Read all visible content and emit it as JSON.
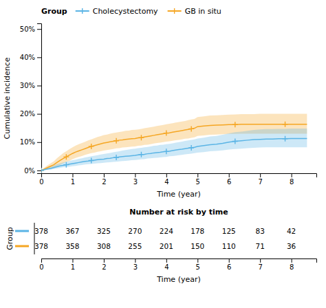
{
  "chart_data": [
    {
      "type": "line",
      "x_label": "Time (year)",
      "y_label": "Cumulative incidence",
      "legend_title": "Group",
      "legend": "upper left",
      "x": [
        0,
        0.1,
        0.2,
        0.3,
        0.4,
        0.5,
        0.6,
        0.7,
        0.8,
        0.9,
        1.0,
        1.1,
        1.2,
        1.3,
        1.4,
        1.5,
        1.6,
        1.7,
        1.8,
        1.9,
        2.0,
        2.1,
        2.2,
        2.3,
        2.4,
        2.5,
        2.6,
        2.7,
        2.8,
        2.9,
        3.0,
        3.1,
        3.2,
        3.3,
        3.4,
        3.5,
        3.6,
        3.7,
        3.8,
        3.9,
        4.0,
        4.1,
        4.2,
        4.3,
        4.4,
        4.5,
        4.6,
        4.7,
        4.8,
        4.9,
        5.0,
        5.2,
        5.4,
        5.6,
        5.8,
        6.0,
        6.2,
        6.4,
        6.6,
        6.8,
        7.0,
        7.2,
        7.4,
        7.6,
        7.8,
        8.0,
        8.2,
        8.5
      ],
      "series": [
        {
          "name": "Cholecystectomy",
          "color": "#5ab4e5",
          "marker": "plus",
          "values": [
            0.0,
            0.003,
            0.005,
            0.007,
            0.01,
            0.013,
            0.016,
            0.018,
            0.02,
            0.022,
            0.024,
            0.026,
            0.028,
            0.03,
            0.032,
            0.033,
            0.035,
            0.036,
            0.038,
            0.039,
            0.04,
            0.042,
            0.043,
            0.045,
            0.046,
            0.048,
            0.049,
            0.05,
            0.051,
            0.052,
            0.053,
            0.055,
            0.056,
            0.057,
            0.059,
            0.06,
            0.062,
            0.063,
            0.064,
            0.066,
            0.067,
            0.068,
            0.07,
            0.072,
            0.074,
            0.075,
            0.077,
            0.079,
            0.08,
            0.082,
            0.085,
            0.088,
            0.091,
            0.093,
            0.096,
            0.1,
            0.103,
            0.105,
            0.107,
            0.109,
            0.11,
            0.111,
            0.111,
            0.112,
            0.112,
            0.113,
            0.113,
            0.113
          ],
          "lower": [
            0.0,
            0.001,
            0.002,
            0.003,
            0.005,
            0.007,
            0.009,
            0.011,
            0.012,
            0.013,
            0.015,
            0.016,
            0.018,
            0.019,
            0.021,
            0.022,
            0.023,
            0.024,
            0.025,
            0.026,
            0.027,
            0.028,
            0.029,
            0.03,
            0.031,
            0.032,
            0.033,
            0.034,
            0.035,
            0.036,
            0.037,
            0.038,
            0.039,
            0.04,
            0.042,
            0.043,
            0.044,
            0.045,
            0.046,
            0.047,
            0.048,
            0.05,
            0.051,
            0.052,
            0.054,
            0.055,
            0.057,
            0.058,
            0.059,
            0.061,
            0.063,
            0.065,
            0.068,
            0.069,
            0.071,
            0.074,
            0.076,
            0.077,
            0.079,
            0.08,
            0.081,
            0.082,
            0.082,
            0.082,
            0.082,
            0.082,
            0.082,
            0.082
          ],
          "upper": [
            0.0,
            0.006,
            0.01,
            0.013,
            0.018,
            0.022,
            0.025,
            0.028,
            0.031,
            0.033,
            0.036,
            0.038,
            0.041,
            0.043,
            0.046,
            0.048,
            0.05,
            0.052,
            0.054,
            0.056,
            0.058,
            0.06,
            0.062,
            0.064,
            0.066,
            0.068,
            0.07,
            0.072,
            0.074,
            0.076,
            0.077,
            0.079,
            0.08,
            0.082,
            0.083,
            0.085,
            0.087,
            0.088,
            0.09,
            0.091,
            0.093,
            0.094,
            0.096,
            0.098,
            0.1,
            0.102,
            0.104,
            0.106,
            0.108,
            0.11,
            0.113,
            0.116,
            0.12,
            0.122,
            0.126,
            0.131,
            0.135,
            0.137,
            0.14,
            0.143,
            0.145,
            0.146,
            0.146,
            0.147,
            0.147,
            0.148,
            0.148,
            0.148
          ]
        },
        {
          "name": "GB in situ",
          "color": "#f5a623",
          "marker": "plus",
          "values": [
            0.0,
            0.005,
            0.01,
            0.015,
            0.02,
            0.028,
            0.035,
            0.042,
            0.048,
            0.054,
            0.06,
            0.065,
            0.069,
            0.073,
            0.077,
            0.081,
            0.085,
            0.088,
            0.091,
            0.094,
            0.097,
            0.099,
            0.101,
            0.103,
            0.105,
            0.107,
            0.108,
            0.11,
            0.111,
            0.112,
            0.113,
            0.115,
            0.116,
            0.118,
            0.12,
            0.122,
            0.124,
            0.126,
            0.128,
            0.13,
            0.132,
            0.133,
            0.135,
            0.137,
            0.139,
            0.141,
            0.143,
            0.145,
            0.147,
            0.149,
            0.155,
            0.157,
            0.159,
            0.16,
            0.161,
            0.162,
            0.162,
            0.163,
            0.163,
            0.163,
            0.163,
            0.163,
            0.163,
            0.163,
            0.163,
            0.163,
            0.163,
            0.163
          ],
          "lower": [
            0.0,
            0.002,
            0.004,
            0.007,
            0.01,
            0.015,
            0.02,
            0.025,
            0.03,
            0.034,
            0.04,
            0.044,
            0.048,
            0.051,
            0.055,
            0.058,
            0.061,
            0.063,
            0.066,
            0.068,
            0.07,
            0.072,
            0.074,
            0.076,
            0.078,
            0.079,
            0.081,
            0.082,
            0.083,
            0.084,
            0.085,
            0.087,
            0.088,
            0.09,
            0.091,
            0.093,
            0.095,
            0.097,
            0.098,
            0.1,
            0.102,
            0.103,
            0.105,
            0.107,
            0.108,
            0.11,
            0.112,
            0.113,
            0.115,
            0.117,
            0.122,
            0.124,
            0.126,
            0.127,
            0.128,
            0.129,
            0.129,
            0.13,
            0.13,
            0.13,
            0.13,
            0.13,
            0.13,
            0.13,
            0.13,
            0.13,
            0.13,
            0.13
          ],
          "upper": [
            0.0,
            0.01,
            0.018,
            0.025,
            0.032,
            0.043,
            0.052,
            0.061,
            0.068,
            0.075,
            0.082,
            0.088,
            0.093,
            0.097,
            0.101,
            0.106,
            0.11,
            0.114,
            0.118,
            0.121,
            0.125,
            0.127,
            0.13,
            0.132,
            0.134,
            0.136,
            0.138,
            0.14,
            0.141,
            0.143,
            0.144,
            0.145,
            0.147,
            0.149,
            0.151,
            0.153,
            0.155,
            0.157,
            0.159,
            0.161,
            0.163,
            0.165,
            0.167,
            0.169,
            0.171,
            0.173,
            0.175,
            0.178,
            0.18,
            0.182,
            0.189,
            0.191,
            0.194,
            0.195,
            0.196,
            0.197,
            0.198,
            0.199,
            0.199,
            0.199,
            0.2,
            0.2,
            0.2,
            0.2,
            0.2,
            0.2,
            0.2,
            0.2
          ]
        }
      ],
      "xlim": [
        0,
        8.8
      ],
      "xticks": [
        0,
        1,
        2,
        3,
        4,
        5,
        6,
        7,
        8
      ],
      "ylim": [
        -0.01,
        0.52
      ],
      "yticks": [
        {
          "value": 0.0,
          "label": "0%"
        },
        {
          "value": 0.1,
          "label": "10%"
        },
        {
          "value": 0.2,
          "label": "20%"
        },
        {
          "value": 0.3,
          "label": "30%"
        },
        {
          "value": 0.4,
          "label": "40%"
        },
        {
          "value": 0.5,
          "label": "50%"
        }
      ]
    },
    {
      "type": "table",
      "title": "Number at risk by time",
      "x_label": "Time (year)",
      "y_label": "Group",
      "x": [
        0,
        1,
        2,
        3,
        4,
        5,
        6,
        7,
        8
      ],
      "series": [
        {
          "color": "#5ab4e5",
          "values": [
            378,
            367,
            325,
            270,
            224,
            178,
            125,
            83,
            42
          ]
        },
        {
          "color": "#f5a623",
          "values": [
            378,
            358,
            308,
            255,
            201,
            150,
            110,
            71,
            36
          ]
        }
      ],
      "xlim": [
        0,
        8.8
      ],
      "xticks": [
        0,
        1,
        2,
        3,
        4,
        5,
        6,
        7,
        8
      ]
    }
  ]
}
